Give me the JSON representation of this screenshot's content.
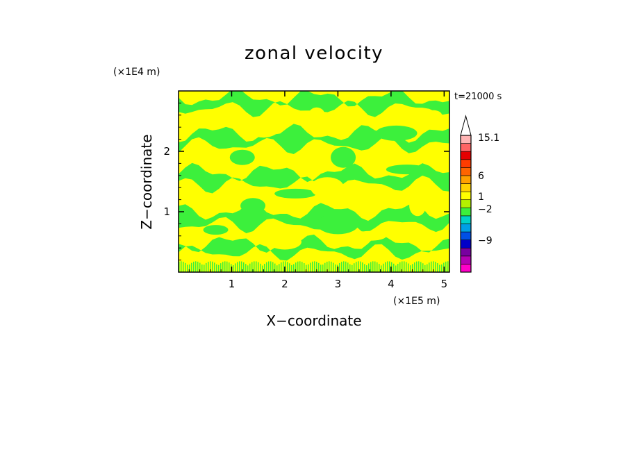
{
  "chart_data": {
    "type": "heatmap",
    "title": "zonal velocity",
    "xlabel": "X−coordinate",
    "ylabel": "Z−coordinate",
    "x_unit": "(×1E5 m)",
    "y_unit": "(×1E4 m)",
    "time_label": "t=21000 s",
    "xlim": [
      0,
      5.1
    ],
    "ylim": [
      0,
      3.0
    ],
    "x_ticks": [
      {
        "value": 1,
        "label": "1"
      },
      {
        "value": 2,
        "label": "2"
      },
      {
        "value": 3,
        "label": "3"
      },
      {
        "value": 4,
        "label": "4"
      },
      {
        "value": 5,
        "label": "5"
      }
    ],
    "y_ticks": [
      {
        "value": 1,
        "label": "1"
      },
      {
        "value": 2,
        "label": "2"
      }
    ],
    "field": {
      "background_value": 0.5,
      "band_value": -1.5,
      "bands": [
        {
          "z": 2.8,
          "thickness": 0.18
        },
        {
          "z": 2.2,
          "thickness": 0.2
        },
        {
          "z": 1.55,
          "thickness": 0.2
        },
        {
          "z": 0.9,
          "thickness": 0.22
        },
        {
          "z": 0.4,
          "thickness": 0.15
        }
      ],
      "noise_layer_top": 0.18
    },
    "colorbar": {
      "colors": [
        "#ff00c8",
        "#b400b4",
        "#7800a0",
        "#0000c8",
        "#0050e6",
        "#00a0e6",
        "#00d2c8",
        "#3cf03c",
        "#b4f000",
        "#ffff00",
        "#ffd200",
        "#ffa000",
        "#ff6400",
        "#ff3c00",
        "#e60000",
        "#ff6464",
        "#ffb4b4"
      ],
      "labels": [
        {
          "level": 15.1,
          "label": "15.1"
        },
        {
          "level": 6,
          "label": "6"
        },
        {
          "level": 1,
          "label": "1"
        },
        {
          "level": -2,
          "label": "−2"
        },
        {
          "level": -9,
          "label": "−9"
        }
      ],
      "extend": "max"
    },
    "colors": {
      "green": "#3cf03c",
      "yellow": "#ffff00"
    }
  }
}
